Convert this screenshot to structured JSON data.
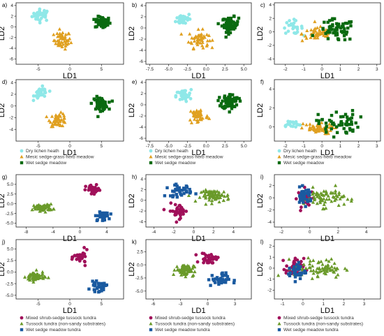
{
  "colors": {
    "dry": "#8fe8e8",
    "mesic": "#e0a020",
    "wet": "#0a6a10",
    "mixed": "#a0105a",
    "tussock": "#6a9a2a",
    "wetTundra": "#1a5aa0"
  },
  "legends": {
    "group1": [
      "Dry lichen heath",
      "Mesic sedge-grass-herb meadow",
      "Wet sedge meadow"
    ],
    "group2": [
      "Mixed shrub-sedge tussock tundra",
      "Tussock tundra (non-sandy substrates)",
      "Wet sedge meadow tundra"
    ]
  },
  "chart_data": [
    {
      "label": "a)",
      "type": "scatter",
      "xlabel": "LD1",
      "ylabel": "LD2",
      "xticks": [
        -5,
        0,
        5
      ],
      "yticks": [
        -6,
        -4,
        -2,
        0,
        2,
        4
      ],
      "xlim": [
        -8.5,
        8.5
      ],
      "ylim": [
        -7,
        4.5
      ],
      "series": [
        {
          "group": "dry",
          "marker": "circle",
          "center": [
            -4.5,
            2.2
          ],
          "spread": [
            1.3,
            1.0
          ],
          "n": 35
        },
        {
          "group": "mesic",
          "marker": "triangle",
          "center": [
            -1.2,
            -2.5
          ],
          "spread": [
            1.2,
            1.5
          ],
          "n": 50
        },
        {
          "group": "wet",
          "marker": "square",
          "center": [
            5.2,
            0.8
          ],
          "spread": [
            1.1,
            1.0
          ],
          "n": 55
        }
      ]
    },
    {
      "label": "b)",
      "type": "scatter",
      "xlabel": "LD1",
      "ylabel": "LD2",
      "xticks": [
        -7.5,
        -5.0,
        -2.5,
        0.0,
        2.5,
        5.0
      ],
      "yticks": [
        -6,
        -4,
        -2,
        0,
        2,
        4
      ],
      "xlim": [
        -8,
        6
      ],
      "ylim": [
        -6.5,
        4.5
      ],
      "series": [
        {
          "group": "dry",
          "marker": "circle",
          "center": [
            -3.0,
            1.6
          ],
          "spread": [
            0.9,
            1.0
          ],
          "n": 35
        },
        {
          "group": "mesic",
          "marker": "triangle",
          "center": [
            -1.0,
            -2.0
          ],
          "spread": [
            1.2,
            1.4
          ],
          "n": 50
        },
        {
          "group": "wet",
          "marker": "square",
          "center": [
            3.2,
            0.6
          ],
          "spread": [
            1.0,
            1.2
          ],
          "n": 70
        }
      ]
    },
    {
      "label": "c)",
      "type": "scatter",
      "xlabel": "LD1",
      "ylabel": "LD2",
      "xticks": [
        -2,
        -1,
        0,
        1,
        2,
        3
      ],
      "yticks": [
        -4,
        -2,
        0,
        2,
        4
      ],
      "xlim": [
        -2.6,
        3.2
      ],
      "ylim": [
        -4.8,
        4.3
      ],
      "series": [
        {
          "group": "dry",
          "marker": "circle",
          "center": [
            -1.6,
            0.7
          ],
          "spread": [
            0.5,
            0.9
          ],
          "n": 25
        },
        {
          "group": "mesic",
          "marker": "triangle",
          "center": [
            -0.2,
            -0.3
          ],
          "spread": [
            0.8,
            1.0
          ],
          "n": 50
        },
        {
          "group": "wet",
          "marker": "square",
          "center": [
            0.8,
            0.2
          ],
          "spread": [
            0.9,
            1.5
          ],
          "n": 60
        }
      ]
    },
    {
      "label": "d)",
      "type": "scatter",
      "xlabel": "LD1",
      "ylabel": "LD2",
      "xticks": [
        -5,
        0,
        5
      ],
      "yticks": [
        -4,
        -2,
        0,
        2,
        4
      ],
      "xlim": [
        -8.5,
        8.5
      ],
      "ylim": [
        -6,
        4.5
      ],
      "series": [
        {
          "group": "dry",
          "marker": "circle",
          "center": [
            -4.5,
            2.2
          ],
          "spread": [
            1.0,
            0.9
          ],
          "n": 35
        },
        {
          "group": "mesic",
          "marker": "triangle",
          "center": [
            -1.8,
            -2.4
          ],
          "spread": [
            1.2,
            1.0
          ],
          "n": 50
        },
        {
          "group": "wet",
          "marker": "square",
          "center": [
            4.8,
            0.4
          ],
          "spread": [
            1.1,
            1.0
          ],
          "n": 55
        }
      ]
    },
    {
      "label": "e)",
      "type": "scatter",
      "xlabel": "LD1",
      "ylabel": "LD2",
      "xticks": [
        -7.5,
        -5.0,
        -2.5,
        0.0,
        2.5,
        5.0
      ],
      "yticks": [
        -6,
        -4,
        -2,
        0,
        2,
        4
      ],
      "xlim": [
        -8,
        6
      ],
      "ylim": [
        -6.5,
        4.5
      ],
      "series": [
        {
          "group": "dry",
          "marker": "circle",
          "center": [
            -3.0,
            1.6
          ],
          "spread": [
            0.9,
            1.0
          ],
          "n": 35
        },
        {
          "group": "mesic",
          "marker": "triangle",
          "center": [
            -1.0,
            -2.0
          ],
          "spread": [
            1.2,
            1.4
          ],
          "n": 50
        },
        {
          "group": "wet",
          "marker": "square",
          "center": [
            3.2,
            0.6
          ],
          "spread": [
            1.0,
            1.2
          ],
          "n": 70
        }
      ]
    },
    {
      "label": "f)",
      "type": "scatter",
      "xlabel": "LD1",
      "ylabel": "LD2",
      "xticks": [
        -2,
        -1,
        0,
        1,
        2,
        3
      ],
      "yticks": [
        0,
        2,
        4
      ],
      "xlim": [
        -2.6,
        3.2
      ],
      "ylim": [
        -1.5,
        5
      ],
      "series": [
        {
          "group": "dry",
          "marker": "circle",
          "center": [
            -1.7,
            0.3
          ],
          "spread": [
            0.5,
            0.4
          ],
          "n": 20
        },
        {
          "group": "mesic",
          "marker": "triangle",
          "center": [
            -0.3,
            -0.2
          ],
          "spread": [
            0.8,
            0.5
          ],
          "n": 50
        },
        {
          "group": "wet",
          "marker": "square",
          "center": [
            0.9,
            0.4
          ],
          "spread": [
            1.0,
            1.2
          ],
          "n": 55
        }
      ]
    },
    {
      "label": "g)",
      "type": "scatter",
      "xlabel": "LD1",
      "ylabel": "LD2",
      "xticks": [
        -8,
        -4,
        0,
        4
      ],
      "yticks": [
        -5.0,
        -2.5,
        0.0,
        2.5,
        5.0
      ],
      "xlim": [
        -9.5,
        6.5
      ],
      "ylim": [
        -6,
        7.5
      ],
      "series": [
        {
          "group": "mixed",
          "marker": "circle",
          "center": [
            2.0,
            3.5
          ],
          "spread": [
            1.0,
            1.2
          ],
          "n": 30
        },
        {
          "group": "tussock",
          "marker": "triangle",
          "center": [
            -5.5,
            -1.0
          ],
          "spread": [
            1.3,
            0.8
          ],
          "n": 70
        },
        {
          "group": "wetTundra",
          "marker": "square",
          "center": [
            3.3,
            -3.3
          ],
          "spread": [
            0.9,
            1.0
          ],
          "n": 30
        }
      ]
    },
    {
      "label": "h)",
      "type": "scatter",
      "xlabel": "LD1",
      "ylabel": "LD2",
      "xticks": [
        -4,
        -2,
        0,
        2,
        4
      ],
      "yticks": [
        -4,
        -2,
        0,
        2,
        4
      ],
      "xlim": [
        -4.8,
        5.8
      ],
      "ylim": [
        -5,
        4.8
      ],
      "series": [
        {
          "group": "mixed",
          "marker": "circle",
          "center": [
            -1.5,
            -2.0
          ],
          "spread": [
            0.9,
            1.2
          ],
          "n": 35
        },
        {
          "group": "tussock",
          "marker": "triangle",
          "center": [
            2.2,
            0.8
          ],
          "spread": [
            1.3,
            1.0
          ],
          "n": 70
        },
        {
          "group": "wetTundra",
          "marker": "square",
          "center": [
            -1.5,
            1.8
          ],
          "spread": [
            1.2,
            1.0
          ],
          "n": 35
        }
      ]
    },
    {
      "label": "i)",
      "type": "scatter",
      "xlabel": "LD1",
      "ylabel": "LD2",
      "xticks": [
        -2,
        0,
        2,
        4
      ],
      "yticks": [
        -4,
        -2,
        0,
        2
      ],
      "xlim": [
        -2.5,
        5
      ],
      "ylim": [
        -4.8,
        3.8
      ],
      "series": [
        {
          "group": "mixed",
          "marker": "circle",
          "center": [
            -0.3,
            0.0
          ],
          "spread": [
            0.5,
            1.3
          ],
          "n": 40
        },
        {
          "group": "tussock",
          "marker": "triangle",
          "center": [
            1.0,
            0.0
          ],
          "spread": [
            1.3,
            1.4
          ],
          "n": 70
        },
        {
          "group": "wetTundra",
          "marker": "square",
          "center": [
            -0.4,
            0.2
          ],
          "spread": [
            0.5,
            1.2
          ],
          "n": 35
        }
      ]
    },
    {
      "label": "j)",
      "type": "scatter",
      "xlabel": "LD1",
      "ylabel": "LD2",
      "xticks": [
        -5,
        0,
        5
      ],
      "yticks": [
        -5.0,
        -2.5,
        0.0,
        2.5,
        5.0
      ],
      "xlim": [
        -8.5,
        8.5
      ],
      "ylim": [
        -5.8,
        7
      ],
      "series": [
        {
          "group": "mixed",
          "marker": "circle",
          "center": [
            1.8,
            3.2
          ],
          "spread": [
            1.0,
            1.3
          ],
          "n": 30
        },
        {
          "group": "tussock",
          "marker": "triangle",
          "center": [
            -5.5,
            -1.0
          ],
          "spread": [
            1.3,
            1.0
          ],
          "n": 70
        },
        {
          "group": "wetTundra",
          "marker": "square",
          "center": [
            4.5,
            -3.2
          ],
          "spread": [
            1.1,
            0.9
          ],
          "n": 30
        }
      ]
    },
    {
      "label": "k)",
      "type": "scatter",
      "xlabel": "LD1",
      "ylabel": "LD2",
      "xticks": [
        -6,
        -3,
        0,
        3
      ],
      "yticks": [
        -5.0,
        -2.5,
        0.0,
        2.5
      ],
      "xlim": [
        -6.8,
        4.8
      ],
      "ylim": [
        -6.5,
        4.8
      ],
      "series": [
        {
          "group": "mixed",
          "marker": "circle",
          "center": [
            0.2,
            1.2
          ],
          "spread": [
            0.9,
            1.0
          ],
          "n": 35
        },
        {
          "group": "tussock",
          "marker": "triangle",
          "center": [
            -2.5,
            -1.0
          ],
          "spread": [
            0.9,
            1.0
          ],
          "n": 70
        },
        {
          "group": "wetTundra",
          "marker": "square",
          "center": [
            1.2,
            -2.8
          ],
          "spread": [
            1.1,
            1.1
          ],
          "n": 35
        }
      ]
    },
    {
      "label": "l)",
      "type": "scatter",
      "xlabel": "LD1",
      "ylabel": "LD2",
      "xticks": [
        -1,
        0,
        1,
        2,
        3
      ],
      "yticks": [
        -2,
        -1,
        0,
        1,
        2
      ],
      "xlim": [
        -1.4,
        3.8
      ],
      "ylim": [
        -2.8,
        2.6
      ],
      "series": [
        {
          "group": "mixed",
          "marker": "circle",
          "center": [
            -0.4,
            0.0
          ],
          "spread": [
            0.4,
            0.8
          ],
          "n": 40
        },
        {
          "group": "tussock",
          "marker": "triangle",
          "center": [
            0.8,
            0.0
          ],
          "spread": [
            1.1,
            0.8
          ],
          "n": 70
        },
        {
          "group": "wetTundra",
          "marker": "square",
          "center": [
            -0.3,
            -0.3
          ],
          "spread": [
            0.4,
            0.7
          ],
          "n": 35
        }
      ]
    }
  ]
}
